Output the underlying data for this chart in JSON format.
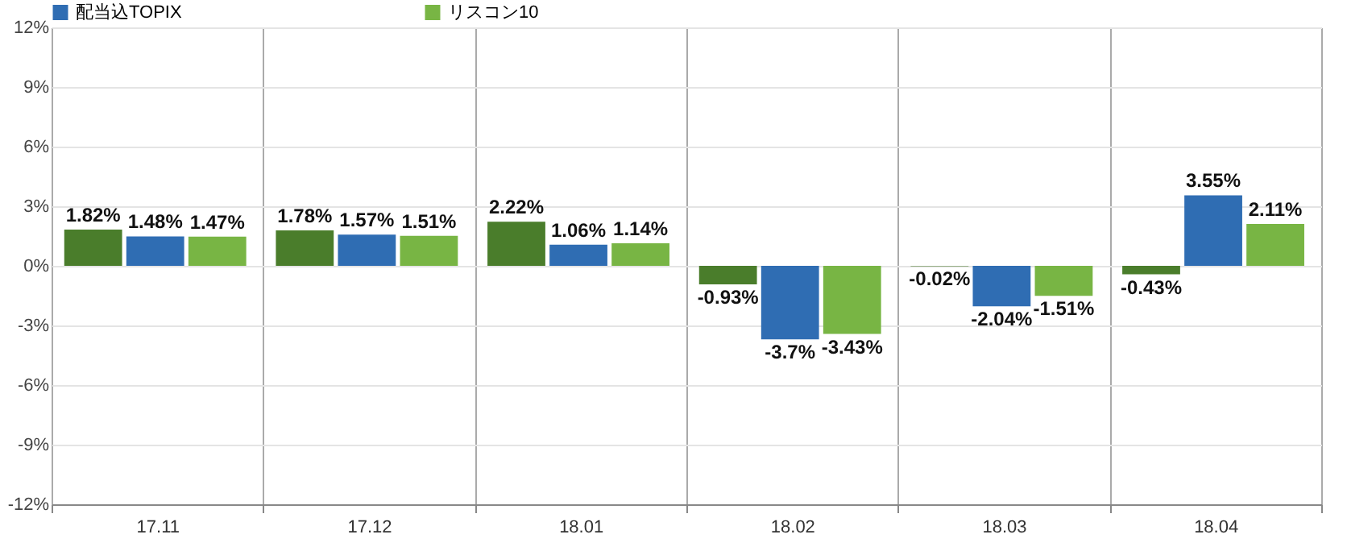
{
  "chart_data": {
    "type": "bar",
    "categories": [
      "17.11",
      "17.12",
      "18.01",
      "18.02",
      "18.03",
      "18.04"
    ],
    "series": [
      {
        "color": "#4a7d2b",
        "values": [
          1.82,
          1.78,
          2.22,
          -0.93,
          -0.02,
          -0.43
        ],
        "value_labels": [
          "1.82%",
          "1.78%",
          "2.22%",
          "-0.93%",
          "-0.02%",
          "-0.43%"
        ]
      },
      {
        "name": "配当込TOPIX",
        "color": "#2f6db3",
        "values": [
          1.48,
          1.57,
          1.06,
          -3.7,
          -2.04,
          3.55
        ],
        "value_labels": [
          "1.48%",
          "1.57%",
          "1.06%",
          "-3.7%",
          "-2.04%",
          "3.55%"
        ]
      },
      {
        "name": "リスコン10",
        "color": "#78b544",
        "values": [
          1.47,
          1.51,
          1.14,
          -3.43,
          -1.51,
          2.11
        ],
        "value_labels": [
          "1.47%",
          "1.51%",
          "1.14%",
          "-3.43%",
          "-1.51%",
          "2.11%"
        ]
      }
    ],
    "ylim": [
      -12,
      12
    ],
    "yticks": [
      {
        "value": -12,
        "label": "-12%"
      },
      {
        "value": -9,
        "label": "-9%"
      },
      {
        "value": -6,
        "label": "-6%"
      },
      {
        "value": -3,
        "label": "-3%"
      },
      {
        "value": 0,
        "label": "0%"
      },
      {
        "value": 3,
        "label": "3%"
      },
      {
        "value": 6,
        "label": "6%"
      },
      {
        "value": 9,
        "label": "9%"
      },
      {
        "value": 12,
        "label": "12%"
      }
    ],
    "grid": true,
    "legend": "top"
  }
}
